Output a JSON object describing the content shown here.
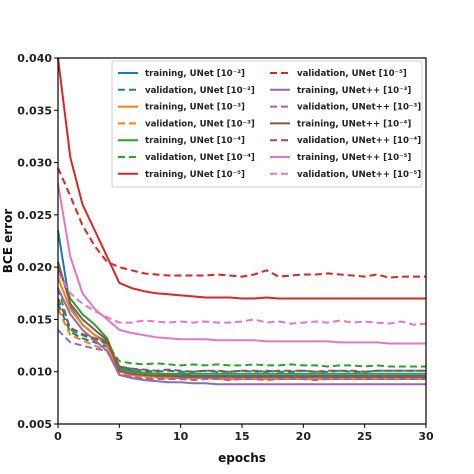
{
  "chart_data": {
    "type": "line",
    "xlabel": "epochs",
    "ylabel": "BCE error",
    "xlim": [
      0,
      30
    ],
    "ylim": [
      0.005,
      0.04
    ],
    "x_ticks": [
      "0",
      "5",
      "10",
      "15",
      "20",
      "25",
      "30"
    ],
    "y_ticks": [
      "0.005",
      "0.010",
      "0.015",
      "0.020",
      "0.025",
      "0.030",
      "0.035",
      "0.040"
    ],
    "grid": false,
    "legend_position": "top-right",
    "x": [
      0,
      1,
      2,
      3,
      4,
      5,
      6,
      7,
      8,
      9,
      10,
      11,
      12,
      13,
      14,
      15,
      16,
      17,
      18,
      19,
      20,
      21,
      22,
      23,
      24,
      25,
      26,
      27,
      28,
      29,
      30
    ],
    "series": [
      {
        "name": "training, UNet [10⁻²]",
        "color": "#1f77b4",
        "dash": "solid",
        "values": [
          0.0235,
          0.0162,
          0.0145,
          0.0135,
          0.0128,
          0.0105,
          0.0101,
          0.0099,
          0.0098,
          0.0097,
          0.0097,
          0.0096,
          0.0096,
          0.0096,
          0.0096,
          0.0096,
          0.0096,
          0.0096,
          0.0096,
          0.0096,
          0.0096,
          0.0096,
          0.0096,
          0.0096,
          0.0096,
          0.0096,
          0.0096,
          0.0096,
          0.0096,
          0.0096,
          0.0096
        ]
      },
      {
        "name": "validation, UNet [10⁻²]",
        "color": "#1f77b4",
        "dash": "dashed",
        "values": [
          0.0165,
          0.0138,
          0.0132,
          0.0128,
          0.0124,
          0.0104,
          0.0103,
          0.0101,
          0.01,
          0.0101,
          0.01,
          0.01,
          0.0101,
          0.01,
          0.01,
          0.0101,
          0.01,
          0.0101,
          0.01,
          0.01,
          0.0101,
          0.01,
          0.01,
          0.0101,
          0.01,
          0.01,
          0.0101,
          0.0101,
          0.0101,
          0.0101,
          0.0101
        ]
      },
      {
        "name": "training, UNet [10⁻³]",
        "color": "#ff7f0e",
        "dash": "solid",
        "values": [
          0.019,
          0.016,
          0.0145,
          0.0135,
          0.0125,
          0.01,
          0.0097,
          0.0096,
          0.0095,
          0.0094,
          0.0094,
          0.0094,
          0.0094,
          0.0093,
          0.0093,
          0.0093,
          0.0093,
          0.0093,
          0.0093,
          0.0093,
          0.0093,
          0.0093,
          0.0093,
          0.0093,
          0.0093,
          0.0093,
          0.0093,
          0.0093,
          0.0093,
          0.0093,
          0.0093
        ]
      },
      {
        "name": "validation, UNet [10⁻³]",
        "color": "#ff7f0e",
        "dash": "dashed",
        "values": [
          0.016,
          0.0135,
          0.013,
          0.0125,
          0.012,
          0.0098,
          0.0096,
          0.0094,
          0.0094,
          0.0095,
          0.0094,
          0.0093,
          0.0094,
          0.0094,
          0.0093,
          0.0094,
          0.0094,
          0.0093,
          0.0094,
          0.0094,
          0.0094,
          0.0093,
          0.0094,
          0.0094,
          0.0094,
          0.0094,
          0.0094,
          0.0094,
          0.0094,
          0.0094,
          0.0094
        ]
      },
      {
        "name": "training, UNet [10⁻⁴]",
        "color": "#2ca02c",
        "dash": "solid",
        "values": [
          0.02,
          0.017,
          0.0155,
          0.0145,
          0.0132,
          0.0103,
          0.01,
          0.0099,
          0.0098,
          0.0098,
          0.0098,
          0.0098,
          0.0098,
          0.0098,
          0.0098,
          0.0098,
          0.0098,
          0.0098,
          0.0098,
          0.0098,
          0.0098,
          0.0098,
          0.0098,
          0.0098,
          0.0098,
          0.0098,
          0.0098,
          0.0098,
          0.0098,
          0.0098,
          0.0098
        ]
      },
      {
        "name": "validation, UNet [10⁻⁴]",
        "color": "#2ca02c",
        "dash": "dashed",
        "values": [
          0.018,
          0.014,
          0.0135,
          0.013,
          0.0127,
          0.011,
          0.0108,
          0.0107,
          0.0108,
          0.0107,
          0.0106,
          0.0107,
          0.0106,
          0.0107,
          0.0106,
          0.0106,
          0.0107,
          0.0106,
          0.0106,
          0.0107,
          0.0106,
          0.0106,
          0.0105,
          0.0106,
          0.0106,
          0.0105,
          0.0106,
          0.0105,
          0.0105,
          0.0105,
          0.0105
        ]
      },
      {
        "name": "training, UNet [10⁻⁵]",
        "color": "#d62728",
        "dash": "solid",
        "values": [
          0.04,
          0.0305,
          0.026,
          0.0235,
          0.021,
          0.0185,
          0.018,
          0.0177,
          0.0175,
          0.0174,
          0.0173,
          0.0172,
          0.0171,
          0.0171,
          0.0171,
          0.017,
          0.017,
          0.0171,
          0.017,
          0.017,
          0.017,
          0.017,
          0.017,
          0.017,
          0.017,
          0.017,
          0.017,
          0.017,
          0.017,
          0.017,
          0.017
        ]
      },
      {
        "name": "validation, UNet [10⁻⁵]",
        "color": "#d62728",
        "dash": "dashed",
        "values": [
          0.0295,
          0.0268,
          0.024,
          0.022,
          0.0205,
          0.02,
          0.0197,
          0.0194,
          0.0193,
          0.0192,
          0.0192,
          0.0192,
          0.0192,
          0.0193,
          0.0192,
          0.0191,
          0.0193,
          0.0197,
          0.0191,
          0.0192,
          0.0193,
          0.0193,
          0.0194,
          0.0193,
          0.0192,
          0.0191,
          0.0193,
          0.019,
          0.0191,
          0.0191,
          0.0191
        ]
      },
      {
        "name": "training, UNet++ [10⁻³]",
        "color": "#9467bd",
        "dash": "solid",
        "values": [
          0.018,
          0.0155,
          0.014,
          0.013,
          0.012,
          0.0097,
          0.0094,
          0.0092,
          0.0091,
          0.009,
          0.009,
          0.0089,
          0.0089,
          0.0088,
          0.0088,
          0.0088,
          0.0088,
          0.0088,
          0.0088,
          0.0088,
          0.0088,
          0.0088,
          0.0088,
          0.0088,
          0.0088,
          0.0088,
          0.0088,
          0.0088,
          0.0088,
          0.0088,
          0.0088
        ]
      },
      {
        "name": "validation, UNet++ [10⁻³]",
        "color": "#9467bd",
        "dash": "dashed",
        "values": [
          0.014,
          0.0128,
          0.0125,
          0.0122,
          0.012,
          0.0097,
          0.0095,
          0.0093,
          0.0093,
          0.0093,
          0.0093,
          0.0092,
          0.0093,
          0.0093,
          0.0092,
          0.0093,
          0.0093,
          0.0092,
          0.0093,
          0.0093,
          0.0093,
          0.0092,
          0.0093,
          0.0093,
          0.0093,
          0.0093,
          0.0093,
          0.0093,
          0.0093,
          0.0093,
          0.0093
        ]
      },
      {
        "name": "training, UNet++ [10⁻⁴]",
        "color": "#8c564b",
        "dash": "solid",
        "values": [
          0.0205,
          0.0165,
          0.015,
          0.014,
          0.013,
          0.0101,
          0.0098,
          0.0097,
          0.0096,
          0.0096,
          0.0095,
          0.0095,
          0.0095,
          0.0095,
          0.0095,
          0.0095,
          0.0095,
          0.0095,
          0.0095,
          0.0095,
          0.0095,
          0.0095,
          0.0095,
          0.0095,
          0.0095,
          0.0095,
          0.0095,
          0.0095,
          0.0095,
          0.0095,
          0.0095
        ]
      },
      {
        "name": "validation, UNet++ [10⁻⁴]",
        "color": "#8c564b",
        "dash": "dashed",
        "values": [
          0.017,
          0.0142,
          0.0136,
          0.0132,
          0.0128,
          0.0105,
          0.0103,
          0.0102,
          0.0101,
          0.0102,
          0.0101,
          0.01,
          0.0101,
          0.0101,
          0.01,
          0.0101,
          0.0101,
          0.01,
          0.0101,
          0.0101,
          0.0101,
          0.01,
          0.0101,
          0.0101,
          0.0101,
          0.01,
          0.0101,
          0.0101,
          0.0101,
          0.0101,
          0.0101
        ]
      },
      {
        "name": "training, UNet++ [10⁻⁵]",
        "color": "#e377c2",
        "dash": "solid",
        "values": [
          0.028,
          0.021,
          0.0175,
          0.016,
          0.015,
          0.014,
          0.0137,
          0.0135,
          0.0133,
          0.0132,
          0.0131,
          0.0131,
          0.0131,
          0.013,
          0.013,
          0.013,
          0.013,
          0.0129,
          0.0129,
          0.0129,
          0.0129,
          0.0129,
          0.0129,
          0.0128,
          0.0128,
          0.0128,
          0.0128,
          0.0127,
          0.0127,
          0.0127,
          0.0127
        ]
      },
      {
        "name": "validation, UNet++ [10⁻⁵]",
        "color": "#e377c2",
        "dash": "dashed",
        "values": [
          0.0195,
          0.0175,
          0.0165,
          0.0158,
          0.0152,
          0.0147,
          0.0147,
          0.0149,
          0.0148,
          0.0147,
          0.0148,
          0.0147,
          0.0148,
          0.0147,
          0.0147,
          0.0148,
          0.015,
          0.0147,
          0.0148,
          0.0146,
          0.0147,
          0.0148,
          0.0147,
          0.0149,
          0.0147,
          0.0148,
          0.0147,
          0.0146,
          0.0148,
          0.0145,
          0.0146
        ]
      }
    ]
  }
}
